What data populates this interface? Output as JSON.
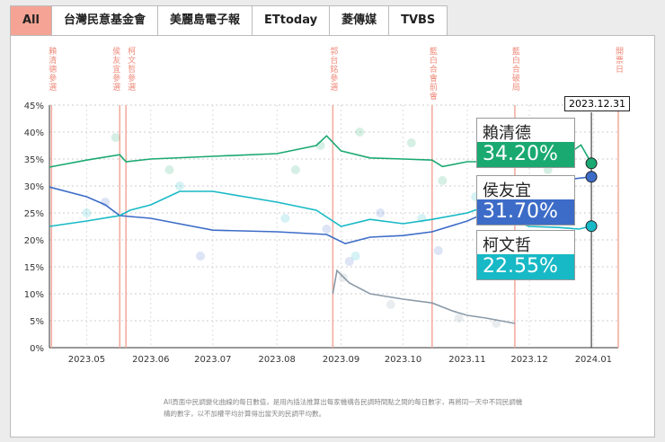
{
  "tabs": [
    {
      "label": "All",
      "active": true
    },
    {
      "label": "台灣民意基金會"
    },
    {
      "label": "美麗島電子報"
    },
    {
      "label": "ETtoday"
    },
    {
      "label": "菱傳媒"
    },
    {
      "label": "TVBS"
    }
  ],
  "note": "All頁面中民調變化曲線的每日數值，是用內插法推算出每家機構各民調時間點之間的每日數字，再將同一天中不同民調機構的數字，以不加權平均計算得出當天的民調平均數。",
  "tooltip_date": "2023.12.31",
  "chart_data": {
    "type": "line",
    "x_range": [
      "2023-04-13",
      "2024-01-13"
    ],
    "ylim": [
      0,
      45
    ],
    "y_ticks": [
      "0%",
      "5%",
      "10%",
      "15%",
      "20%",
      "25%",
      "30%",
      "35%",
      "40%",
      "45%"
    ],
    "x_ticks": [
      {
        "d": "2023-05-01",
        "label": "2023.05"
      },
      {
        "d": "2023-06-01",
        "label": "2023.06"
      },
      {
        "d": "2023-07-01",
        "label": "2023.07"
      },
      {
        "d": "2023-08-01",
        "label": "2023.08"
      },
      {
        "d": "2023-09-01",
        "label": "2023.09"
      },
      {
        "d": "2023-10-01",
        "label": "2023.10"
      },
      {
        "d": "2023-11-01",
        "label": "2023.11"
      },
      {
        "d": "2023-12-01",
        "label": "2023.12"
      },
      {
        "d": "2024-01-01",
        "label": "2024.01"
      }
    ],
    "events": [
      {
        "d": "2023-04-14",
        "label": "賴清德參選"
      },
      {
        "d": "2023-05-17",
        "label": "侯友宜參選"
      },
      {
        "d": "2023-05-20",
        "label": "柯文哲參選"
      },
      {
        "d": "2023-08-28",
        "label": "郭台銘參選"
      },
      {
        "d": "2023-10-15",
        "label": "藍白合會前會"
      },
      {
        "d": "2023-11-24",
        "label": "藍白合破局"
      },
      {
        "d": "2024-01-13",
        "label": "開票日"
      }
    ],
    "series": [
      {
        "name": "賴清德",
        "color": "#1aa971",
        "final": "34.20%",
        "points": [
          [
            "2023-04-13",
            33.5
          ],
          [
            "2023-05-01",
            34.8
          ],
          [
            "2023-05-17",
            35.8
          ],
          [
            "2023-05-20",
            34.5
          ],
          [
            "2023-06-01",
            35
          ],
          [
            "2023-07-01",
            35.5
          ],
          [
            "2023-08-01",
            36
          ],
          [
            "2023-08-20",
            37.5
          ],
          [
            "2023-08-25",
            39.3
          ],
          [
            "2023-09-01",
            36.5
          ],
          [
            "2023-09-15",
            35.2
          ],
          [
            "2023-10-01",
            35
          ],
          [
            "2023-10-15",
            34.8
          ],
          [
            "2023-10-20",
            33.6
          ],
          [
            "2023-11-01",
            34.5
          ],
          [
            "2023-11-20",
            34.5
          ],
          [
            "2023-12-01",
            35
          ],
          [
            "2023-12-20",
            36
          ],
          [
            "2023-12-26",
            37.6
          ],
          [
            "2023-12-31",
            34.2
          ]
        ]
      },
      {
        "name": "侯友宜",
        "color": "#3d6cc8",
        "final": "31.70%",
        "points": [
          [
            "2023-04-13",
            29.8
          ],
          [
            "2023-05-01",
            28
          ],
          [
            "2023-05-10",
            26.5
          ],
          [
            "2023-05-17",
            24.5
          ],
          [
            "2023-06-01",
            24
          ],
          [
            "2023-07-01",
            21.8
          ],
          [
            "2023-08-01",
            21.5
          ],
          [
            "2023-08-25",
            21
          ],
          [
            "2023-09-03",
            19.3
          ],
          [
            "2023-09-15",
            20.5
          ],
          [
            "2023-10-01",
            20.8
          ],
          [
            "2023-10-15",
            21.5
          ],
          [
            "2023-11-01",
            23.5
          ],
          [
            "2023-11-10",
            25
          ],
          [
            "2023-11-20",
            26.5
          ],
          [
            "2023-12-01",
            28
          ],
          [
            "2023-12-15",
            31
          ],
          [
            "2023-12-31",
            31.7
          ]
        ]
      },
      {
        "name": "柯文哲",
        "color": "#17b9c6",
        "final": "22.55%",
        "points": [
          [
            "2023-04-13",
            22.5
          ],
          [
            "2023-05-01",
            23.5
          ],
          [
            "2023-05-17",
            24.5
          ],
          [
            "2023-05-22",
            25.5
          ],
          [
            "2023-06-01",
            26.5
          ],
          [
            "2023-06-15",
            29
          ],
          [
            "2023-07-01",
            29
          ],
          [
            "2023-08-01",
            27
          ],
          [
            "2023-08-20",
            25.5
          ],
          [
            "2023-09-01",
            22.5
          ],
          [
            "2023-09-15",
            23.8
          ],
          [
            "2023-10-01",
            23
          ],
          [
            "2023-10-15",
            23.8
          ],
          [
            "2023-11-01",
            25
          ],
          [
            "2023-11-10",
            26.2
          ],
          [
            "2023-11-20",
            24
          ],
          [
            "2023-12-01",
            22.5
          ],
          [
            "2023-12-15",
            22.3
          ],
          [
            "2023-12-25",
            22
          ],
          [
            "2023-12-31",
            22.55
          ]
        ]
      },
      {
        "name": "郭台銘",
        "color": "#8a9aa8",
        "points": [
          [
            "2023-08-28",
            10
          ],
          [
            "2023-08-30",
            14.3
          ],
          [
            "2023-09-05",
            12
          ],
          [
            "2023-09-15",
            10
          ],
          [
            "2023-10-01",
            9
          ],
          [
            "2023-10-15",
            8.3
          ],
          [
            "2023-10-25",
            6.8
          ],
          [
            "2023-11-01",
            6
          ],
          [
            "2023-11-10",
            5.5
          ],
          [
            "2023-11-24",
            4.5
          ]
        ]
      }
    ],
    "polls": [
      [
        "2023-05-15",
        39,
        0
      ],
      [
        "2023-06-10",
        33,
        0
      ],
      [
        "2023-08-10",
        33,
        0
      ],
      [
        "2023-08-22",
        37.5,
        0
      ],
      [
        "2023-09-10",
        40,
        0
      ],
      [
        "2023-10-05",
        38,
        0
      ],
      [
        "2023-10-20",
        31,
        0
      ],
      [
        "2023-11-15",
        38,
        0
      ],
      [
        "2023-12-10",
        33,
        0
      ],
      [
        "2023-05-10",
        27,
        1
      ],
      [
        "2023-06-25",
        17,
        1
      ],
      [
        "2023-08-25",
        22,
        1
      ],
      [
        "2023-09-05",
        16,
        1
      ],
      [
        "2023-09-20",
        25,
        1
      ],
      [
        "2023-10-18",
        18,
        1
      ],
      [
        "2023-11-25",
        30,
        1
      ],
      [
        "2023-12-20",
        29,
        1
      ],
      [
        "2023-05-01",
        25,
        2
      ],
      [
        "2023-06-15",
        30,
        2
      ],
      [
        "2023-08-05",
        24,
        2
      ],
      [
        "2023-09-08",
        17,
        2
      ],
      [
        "2023-10-10",
        24,
        2
      ],
      [
        "2023-11-05",
        28,
        2
      ],
      [
        "2023-12-05",
        20,
        2
      ],
      [
        "2023-09-02",
        13,
        3
      ],
      [
        "2023-09-25",
        8,
        3
      ],
      [
        "2023-10-28",
        5.5,
        3
      ],
      [
        "2023-11-15",
        4.5,
        3
      ]
    ]
  }
}
